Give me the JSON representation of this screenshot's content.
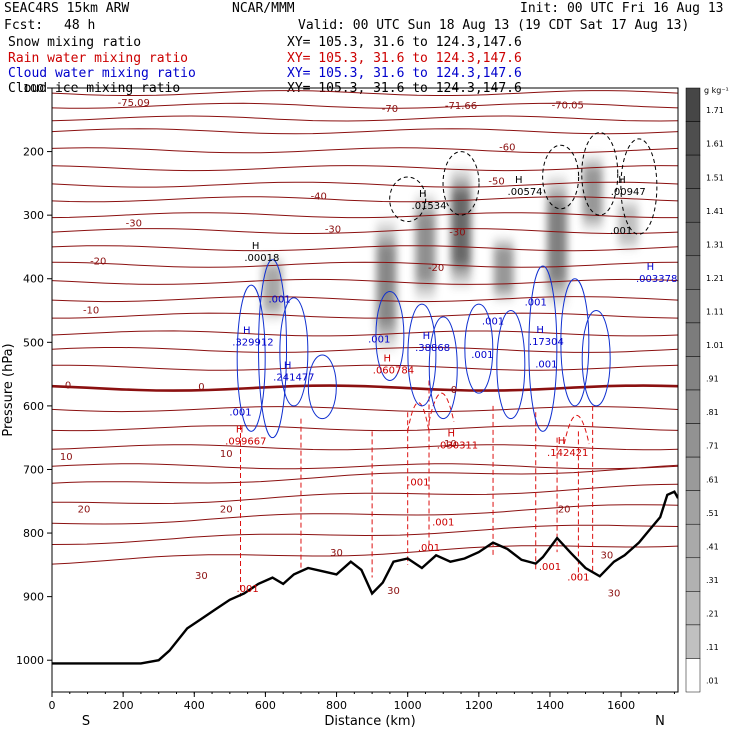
{
  "header": {
    "model": "SEAC4RS 15km ARW",
    "org": "NCAR/MMM",
    "init": "Init: 00 UTC Fri 16 Aug 13",
    "fcst_label": "Fcst:",
    "fcst_value": "48 h",
    "valid": "Valid: 00 UTC Sun 18 Aug 13 (19 CDT Sat 17 Aug 13)"
  },
  "fields": [
    {
      "name": "Snow mixing ratio",
      "xy": "XY= 105.3, 31.6 to 124.3,147.6",
      "color": "#000000"
    },
    {
      "name": "Rain water mixing ratio",
      "xy": "XY= 105.3, 31.6 to 124.3,147.6",
      "color": "#cc0000"
    },
    {
      "name": "Cloud water mixing ratio",
      "xy": "XY= 105.3, 31.6 to 124.3,147.6",
      "color": "#0000cc"
    },
    {
      "name": "Cloud ice mixing ratio",
      "xy": "XY= 105.3, 31.6 to 124.3,147.6",
      "color": "#000000"
    }
  ],
  "chart_data": {
    "type": "contour_cross_section",
    "xlabel": "Distance (km)",
    "ylabel": "Pressure (hPa)",
    "xlim": [
      0,
      1760
    ],
    "ylim": [
      1050,
      100
    ],
    "x_ticks": [
      "0",
      "200",
      "400",
      "600",
      "800",
      "1000",
      "1200",
      "1400",
      "1600"
    ],
    "y_ticks": [
      "100",
      "200",
      "300",
      "400",
      "500",
      "600",
      "700",
      "800",
      "900",
      "1000"
    ],
    "endpoint_labels": {
      "start": "S",
      "end": "N"
    },
    "colorbar": {
      "unit": "g kg⁻¹",
      "levels": [
        "1.71",
        "1.61",
        "1.51",
        "1.41",
        "1.31",
        "1.21",
        "1.11",
        "1.01",
        ".91",
        ".81",
        ".71",
        ".61",
        ".51",
        ".41",
        ".31",
        ".21",
        ".11",
        ".01"
      ]
    },
    "temperature_labels": [
      {
        "text": "-75.09",
        "x": 230,
        "p": 128
      },
      {
        "text": "-70",
        "x": 950,
        "p": 138
      },
      {
        "text": "-71.66",
        "x": 1150,
        "p": 133
      },
      {
        "text": "-70.05",
        "x": 1450,
        "p": 132
      },
      {
        "text": "-60",
        "x": 1280,
        "p": 198
      },
      {
        "text": "-50",
        "x": 1250,
        "p": 252
      },
      {
        "text": "-40",
        "x": 750,
        "p": 275
      },
      {
        "text": "-30",
        "x": 230,
        "p": 318
      },
      {
        "text": "-30",
        "x": 790,
        "p": 327
      },
      {
        "text": "-30",
        "x": 1140,
        "p": 332
      },
      {
        "text": "-20",
        "x": 130,
        "p": 378
      },
      {
        "text": "-20",
        "x": 1080,
        "p": 388
      },
      {
        "text": "-10",
        "x": 110,
        "p": 455
      },
      {
        "text": "0",
        "x": 45,
        "p": 573
      },
      {
        "text": "0",
        "x": 420,
        "p": 575
      },
      {
        "text": "0",
        "x": 1130,
        "p": 580
      },
      {
        "text": "10",
        "x": 40,
        "p": 685
      },
      {
        "text": "10",
        "x": 490,
        "p": 680
      },
      {
        "text": "10",
        "x": 1120,
        "p": 665
      },
      {
        "text": "20",
        "x": 90,
        "p": 768
      },
      {
        "text": "20",
        "x": 490,
        "p": 768
      },
      {
        "text": "20",
        "x": 1440,
        "p": 768
      },
      {
        "text": "30",
        "x": 420,
        "p": 872
      },
      {
        "text": "30",
        "x": 800,
        "p": 836
      },
      {
        "text": "30",
        "x": 960,
        "p": 896
      },
      {
        "text": "30",
        "x": 1560,
        "p": 840
      },
      {
        "text": "30",
        "x": 1580,
        "p": 900
      }
    ],
    "max_labels": [
      {
        "text": ".00018",
        "x": 590,
        "p": 372,
        "color": "#000000"
      },
      {
        "text": ".01534",
        "x": 1060,
        "p": 290,
        "color": "#000000"
      },
      {
        "text": ".00574",
        "x": 1330,
        "p": 268,
        "color": "#000000"
      },
      {
        "text": ".00947",
        "x": 1620,
        "p": 268,
        "color": "#000000"
      },
      {
        "text": ".003378",
        "x": 1700,
        "p": 405,
        "color": "#0000cc"
      },
      {
        "text": ".329912",
        "x": 565,
        "p": 505,
        "color": "#0000cc"
      },
      {
        "text": ".241477",
        "x": 680,
        "p": 560,
        "color": "#0000cc"
      },
      {
        "text": ".38868",
        "x": 1070,
        "p": 514,
        "color": "#0000cc"
      },
      {
        "text": ".17304",
        "x": 1390,
        "p": 504,
        "color": "#0000cc"
      },
      {
        "text": ".060784",
        "x": 960,
        "p": 549,
        "color": "#cc0000"
      },
      {
        "text": ".099667",
        "x": 545,
        "p": 661,
        "color": "#cc0000"
      },
      {
        "text": ".030311",
        "x": 1140,
        "p": 667,
        "color": "#cc0000"
      },
      {
        "text": ".142421",
        "x": 1450,
        "p": 679,
        "color": "#cc0000"
      }
    ],
    "contour_labels": [
      {
        "text": ".001",
        "x": 640,
        "p": 437,
        "color": "#0000cc"
      },
      {
        "text": ".001",
        "x": 920,
        "p": 500,
        "color": "#0000cc"
      },
      {
        "text": ".001",
        "x": 1240,
        "p": 472,
        "color": "#0000cc"
      },
      {
        "text": ".001",
        "x": 1210,
        "p": 525,
        "color": "#0000cc"
      },
      {
        "text": ".001",
        "x": 1360,
        "p": 442,
        "color": "#0000cc"
      },
      {
        "text": ".001",
        "x": 1390,
        "p": 540,
        "color": "#0000cc"
      },
      {
        "text": ".001",
        "x": 530,
        "p": 615,
        "color": "#0000cc"
      },
      {
        "text": ".001",
        "x": 1600,
        "p": 330,
        "color": "#000000"
      },
      {
        "text": ".001",
        "x": 1030,
        "p": 725,
        "color": "#cc0000"
      },
      {
        "text": ".001",
        "x": 1100,
        "p": 788,
        "color": "#cc0000"
      },
      {
        "text": ".001",
        "x": 1060,
        "p": 828,
        "color": "#cc0000"
      },
      {
        "text": ".001",
        "x": 1400,
        "p": 858,
        "color": "#cc0000"
      },
      {
        "text": ".001",
        "x": 1480,
        "p": 875,
        "color": "#cc0000"
      },
      {
        "text": ".001",
        "x": 550,
        "p": 893,
        "color": "#cc0000"
      }
    ],
    "terrain_surface": [
      [
        0,
        1005
      ],
      [
        100,
        1005
      ],
      [
        250,
        1005
      ],
      [
        300,
        1000
      ],
      [
        330,
        985
      ],
      [
        380,
        950
      ],
      [
        420,
        935
      ],
      [
        460,
        920
      ],
      [
        500,
        905
      ],
      [
        540,
        895
      ],
      [
        580,
        880
      ],
      [
        620,
        870
      ],
      [
        650,
        880
      ],
      [
        680,
        865
      ],
      [
        720,
        855
      ],
      [
        760,
        860
      ],
      [
        800,
        865
      ],
      [
        840,
        845
      ],
      [
        870,
        858
      ],
      [
        900,
        895
      ],
      [
        930,
        878
      ],
      [
        960,
        845
      ],
      [
        1000,
        840
      ],
      [
        1040,
        855
      ],
      [
        1080,
        835
      ],
      [
        1120,
        845
      ],
      [
        1160,
        840
      ],
      [
        1200,
        830
      ],
      [
        1240,
        815
      ],
      [
        1280,
        825
      ],
      [
        1320,
        842
      ],
      [
        1360,
        848
      ],
      [
        1380,
        838
      ],
      [
        1420,
        808
      ],
      [
        1460,
        832
      ],
      [
        1500,
        855
      ],
      [
        1540,
        868
      ],
      [
        1580,
        845
      ],
      [
        1610,
        835
      ],
      [
        1650,
        815
      ],
      [
        1680,
        795
      ],
      [
        1710,
        775
      ],
      [
        1730,
        740
      ],
      [
        1750,
        735
      ],
      [
        1760,
        745
      ]
    ],
    "freezing_level_p": 572,
    "ice_columns": [
      {
        "x": 620,
        "top": 360,
        "bottom": 470,
        "intensity": 0.55
      },
      {
        "x": 940,
        "top": 300,
        "bottom": 520,
        "intensity": 0.75
      },
      {
        "x": 1050,
        "top": 260,
        "bottom": 440,
        "intensity": 0.7
      },
      {
        "x": 1150,
        "top": 220,
        "bottom": 420,
        "intensity": 0.95
      },
      {
        "x": 1270,
        "top": 330,
        "bottom": 440,
        "intensity": 0.65
      },
      {
        "x": 1420,
        "top": 230,
        "bottom": 450,
        "intensity": 0.8
      },
      {
        "x": 1520,
        "top": 200,
        "bottom": 330,
        "intensity": 0.65
      },
      {
        "x": 1620,
        "top": 270,
        "bottom": 360,
        "intensity": 0.4
      }
    ]
  }
}
